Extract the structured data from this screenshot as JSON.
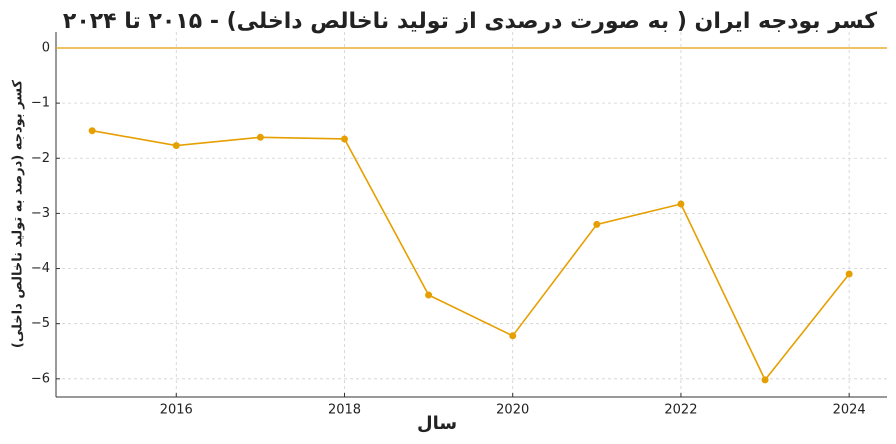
{
  "chart_data": {
    "type": "line",
    "title": "کسر بودجه ایران ( به صورت درصدی از تولید ناخالص داخلی) - ۲۰۱۵ تا ۲۰۲۴",
    "x_label": "سال",
    "y_label": "کسر بودجه (درصد به تولید ناخالص داخلی)",
    "x": [
      2015,
      2016,
      2017,
      2018,
      2019,
      2020,
      2021,
      2022,
      2023,
      2024
    ],
    "series": [
      {
        "color": "#e69f00",
        "values": [
          -1.5,
          -1.77,
          -1.62,
          -1.65,
          -4.48,
          -5.22,
          -3.2,
          -2.83,
          -6.02,
          -4.1
        ]
      }
    ],
    "hline": {
      "value": 0,
      "color": "#e69f00"
    },
    "xlim": [
      2014.57,
      2024.45
    ],
    "xticks": [
      2016,
      2018,
      2020,
      2022,
      2024
    ],
    "ylim": [
      -6.33,
      0.29
    ],
    "yticks": [
      0,
      {
        "value": -1,
        "label": "−1"
      },
      {
        "value": -2,
        "label": "−2"
      },
      {
        "value": -3,
        "label": "−3"
      },
      {
        "value": -4,
        "label": "−4"
      },
      {
        "value": -5,
        "label": "−5"
      },
      {
        "value": -6,
        "label": "−6"
      }
    ],
    "grid": true
  }
}
